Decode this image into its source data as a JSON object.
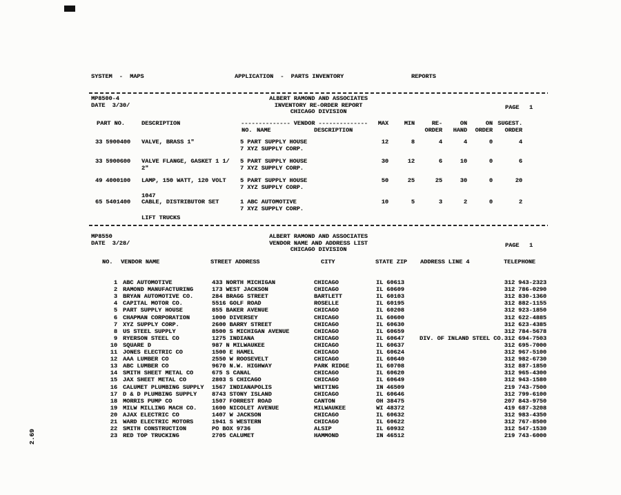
{
  "side_page_number": "2.69",
  "top_bar": {
    "system": "SYSTEM  -  MAPS",
    "application": "APPLICATION  -  PARTS INVENTORY",
    "reports": "REPORTS"
  },
  "report1": {
    "program_id": "MP8500-4",
    "date_line": "DATE  3/30/",
    "company": "ALBERT RAMOND AND ASSOCIATES",
    "title": "INVENTORY RE-ORDER REPORT",
    "division": "CHICAGO DIVISION",
    "page_label": "PAGE",
    "page_number": "1",
    "header": {
      "part_no": "PART NO.",
      "description": "DESCRIPTION",
      "vendor_banner": "-------------- VENDOR --------------",
      "vendor_no": "NO.",
      "vendor_name": "NAME",
      "vendor_description": "DESCRIPTION",
      "num_cols": [
        [
          "MAX",
          ""
        ],
        [
          "MIN",
          ""
        ],
        [
          "RE-",
          "ORDER"
        ],
        [
          "ON",
          "HAND"
        ],
        [
          "ON",
          "ORDER"
        ],
        [
          "SUGEST.",
          "ORDER"
        ]
      ]
    },
    "rows": [
      {
        "part_no": "33 5900400",
        "description": [
          "VALVE, BRASS 1\""
        ],
        "vendors": [
          "5 PART SUPPLY HOUSE",
          "7 XYZ SUPPLY CORP."
        ],
        "values": [
          "12",
          "8",
          "4",
          "4",
          "0",
          "4"
        ]
      },
      {
        "part_no": "33 5900600",
        "description": [
          "VALVE FLANGE, GASKET 1 1/",
          "2\""
        ],
        "vendors": [
          "5 PART SUPPLY HOUSE",
          "7 XYZ SUPPLY CORP."
        ],
        "values": [
          "30",
          "12",
          "6",
          "10",
          "0",
          "6"
        ]
      },
      {
        "part_no": "49 4000100",
        "description": [
          "LAMP, 150 WATT, 120 VOLT"
        ],
        "vendors": [
          "5 PART SUPPLY HOUSE",
          "7 XYZ SUPPLY CORP."
        ],
        "values": [
          "50",
          "25",
          "25",
          "30",
          "0",
          "20"
        ]
      },
      {
        "note_above": "1047",
        "part_no": "65 5401400",
        "description": [
          "CABLE, DISTRIBUTOR SET"
        ],
        "vendors": [
          "1 ABC AUTOMOTIVE",
          "7 XYZ SUPPLY CORP."
        ],
        "values": [
          "10",
          "5",
          "3",
          "2",
          "0",
          "2"
        ],
        "note_below": "LIFT TRUCKS"
      }
    ]
  },
  "report2": {
    "program_id": "MP8550",
    "date_line": "DATE  3/28/",
    "company": "ALBERT RAMOND AND ASSOCIATES",
    "title": "VENDOR NAME AND ADDRESS LIST",
    "division": "CHICAGO DIVISION",
    "page_label": "PAGE",
    "page_number": "1",
    "header": {
      "no": "NO.",
      "vendor_name": "VENDOR NAME",
      "street_address": "STREET ADDRESS",
      "city": "CITY",
      "state_zip": "STATE ZIP",
      "address_line_4": "ADDRESS LINE 4",
      "telephone": "TELEPHONE"
    },
    "rows": [
      [
        "1",
        "ABC AUTOMOTIVE",
        "433 NORTH MICHIGAN",
        "CHICAGO",
        "IL 60613",
        "",
        "312 943-2323"
      ],
      [
        "2",
        "RAMOND MANUFACTURING",
        "173 WEST JACKSON",
        "CHICAGO",
        "IL 60609",
        "",
        "312 786-0290"
      ],
      [
        "3",
        "BRYAN AUTOMOTIVE CO.",
        "284 BRAGG STREET",
        "BARTLETT",
        "IL 60103",
        "",
        "312 830-1360"
      ],
      [
        "4",
        "CAPITAL MOTOR CO.",
        "5516 GOLF ROAD",
        "ROSELLE",
        "IL 60195",
        "",
        "312 882-1155"
      ],
      [
        "5",
        "PART SUPPLY HOUSE",
        "855 BAKER AVENUE",
        "CHICAGO",
        "IL 60208",
        "",
        "312 923-1850"
      ],
      [
        "6",
        "CHAPMAN CORPORATION",
        "1000 DIVERSEY",
        "CHICAGO",
        "IL 60600",
        "",
        "312 622-4885"
      ],
      [
        "7",
        "XYZ SUPPLY CORP.",
        "2600 BARRY STREET",
        "CHICAGO",
        "IL 60630",
        "",
        "312 623-4385"
      ],
      [
        "8",
        "US STEEL SUPPLY",
        "8500 S MICHIGAN AVENUE",
        "CHICAGO",
        "IL 60659",
        "",
        "312 784-5678"
      ],
      [
        "9",
        "RYERSON STEEL CO",
        "1275 INDIANA",
        "CHICAGO",
        "IL 60647",
        "DIV. OF INLAND STEEL CO.",
        "312 694-7503"
      ],
      [
        "10",
        "SQUARE D",
        "987 N MILWAUKEE",
        "CHICAGO",
        "IL 60637",
        "",
        "312 695-7000"
      ],
      [
        "11",
        "JONES ELECTRIC CO",
        "1500 E HAMEL",
        "CHICAGO",
        "IL 60624",
        "",
        "312 967-5100"
      ],
      [
        "12",
        "AAA LUMBER CO",
        "2550 W ROOSEVELT",
        "CHICAGO",
        "IL 60640",
        "",
        "312 982-6730"
      ],
      [
        "13",
        "ABC LUMBER CO",
        "9670 N.W. HIGHWAY",
        "PARK RIDGE",
        "IL 60708",
        "",
        "312 887-1850"
      ],
      [
        "14",
        "SMITH SHEET METAL CO",
        "675 S CANAL",
        "CHICAGO",
        "IL 60620",
        "",
        "312 965-4300"
      ],
      [
        "15",
        "JAX SHEET METAL CO",
        "2803 S CHICAGO",
        "CHICAGO",
        "IL 60649",
        "",
        "312 943-1580"
      ],
      [
        "16",
        "CALUMET PLUMBING SUPPLY",
        "1567 INDIANAPOLIS",
        "WHITING",
        "IN 46509",
        "",
        "219 743-7500"
      ],
      [
        "17",
        "D & D PLUMBING SUPPLY",
        "8743 STONY ISLAND",
        "CHICAGO",
        "IL 60646",
        "",
        "312 799-6100"
      ],
      [
        "18",
        "MORRIS PUMP CO",
        "1507 FORREST ROAD",
        "CANTON",
        "OH 38475",
        "",
        "207 843-9750"
      ],
      [
        "19",
        "MILW MILLING MACH CO.",
        "1600 NICOLET AVENUE",
        "MILWAUKEE",
        "WI 48372",
        "",
        "419 687-3208"
      ],
      [
        "20",
        "AJAX ELECTRIC CO",
        "1407 W JACKSON",
        "CHICAGO",
        "IL 60632",
        "",
        "312 983-4350"
      ],
      [
        "21",
        "WARD ELECTRIC MOTORS",
        "1941 S WESTERN",
        "CHICAGO",
        "IL 60622",
        "",
        "312 767-8500"
      ],
      [
        "22",
        "SMITH CONSTRUCTION",
        "PO BOX 9736",
        "ALSIP",
        "IL 60932",
        "",
        "312 547-1530"
      ],
      [
        "23",
        "RED TOP TRUCKING",
        "2705 CALUMET",
        "HAMMOND",
        "IN 46512",
        "",
        "219 743-6000"
      ]
    ]
  }
}
